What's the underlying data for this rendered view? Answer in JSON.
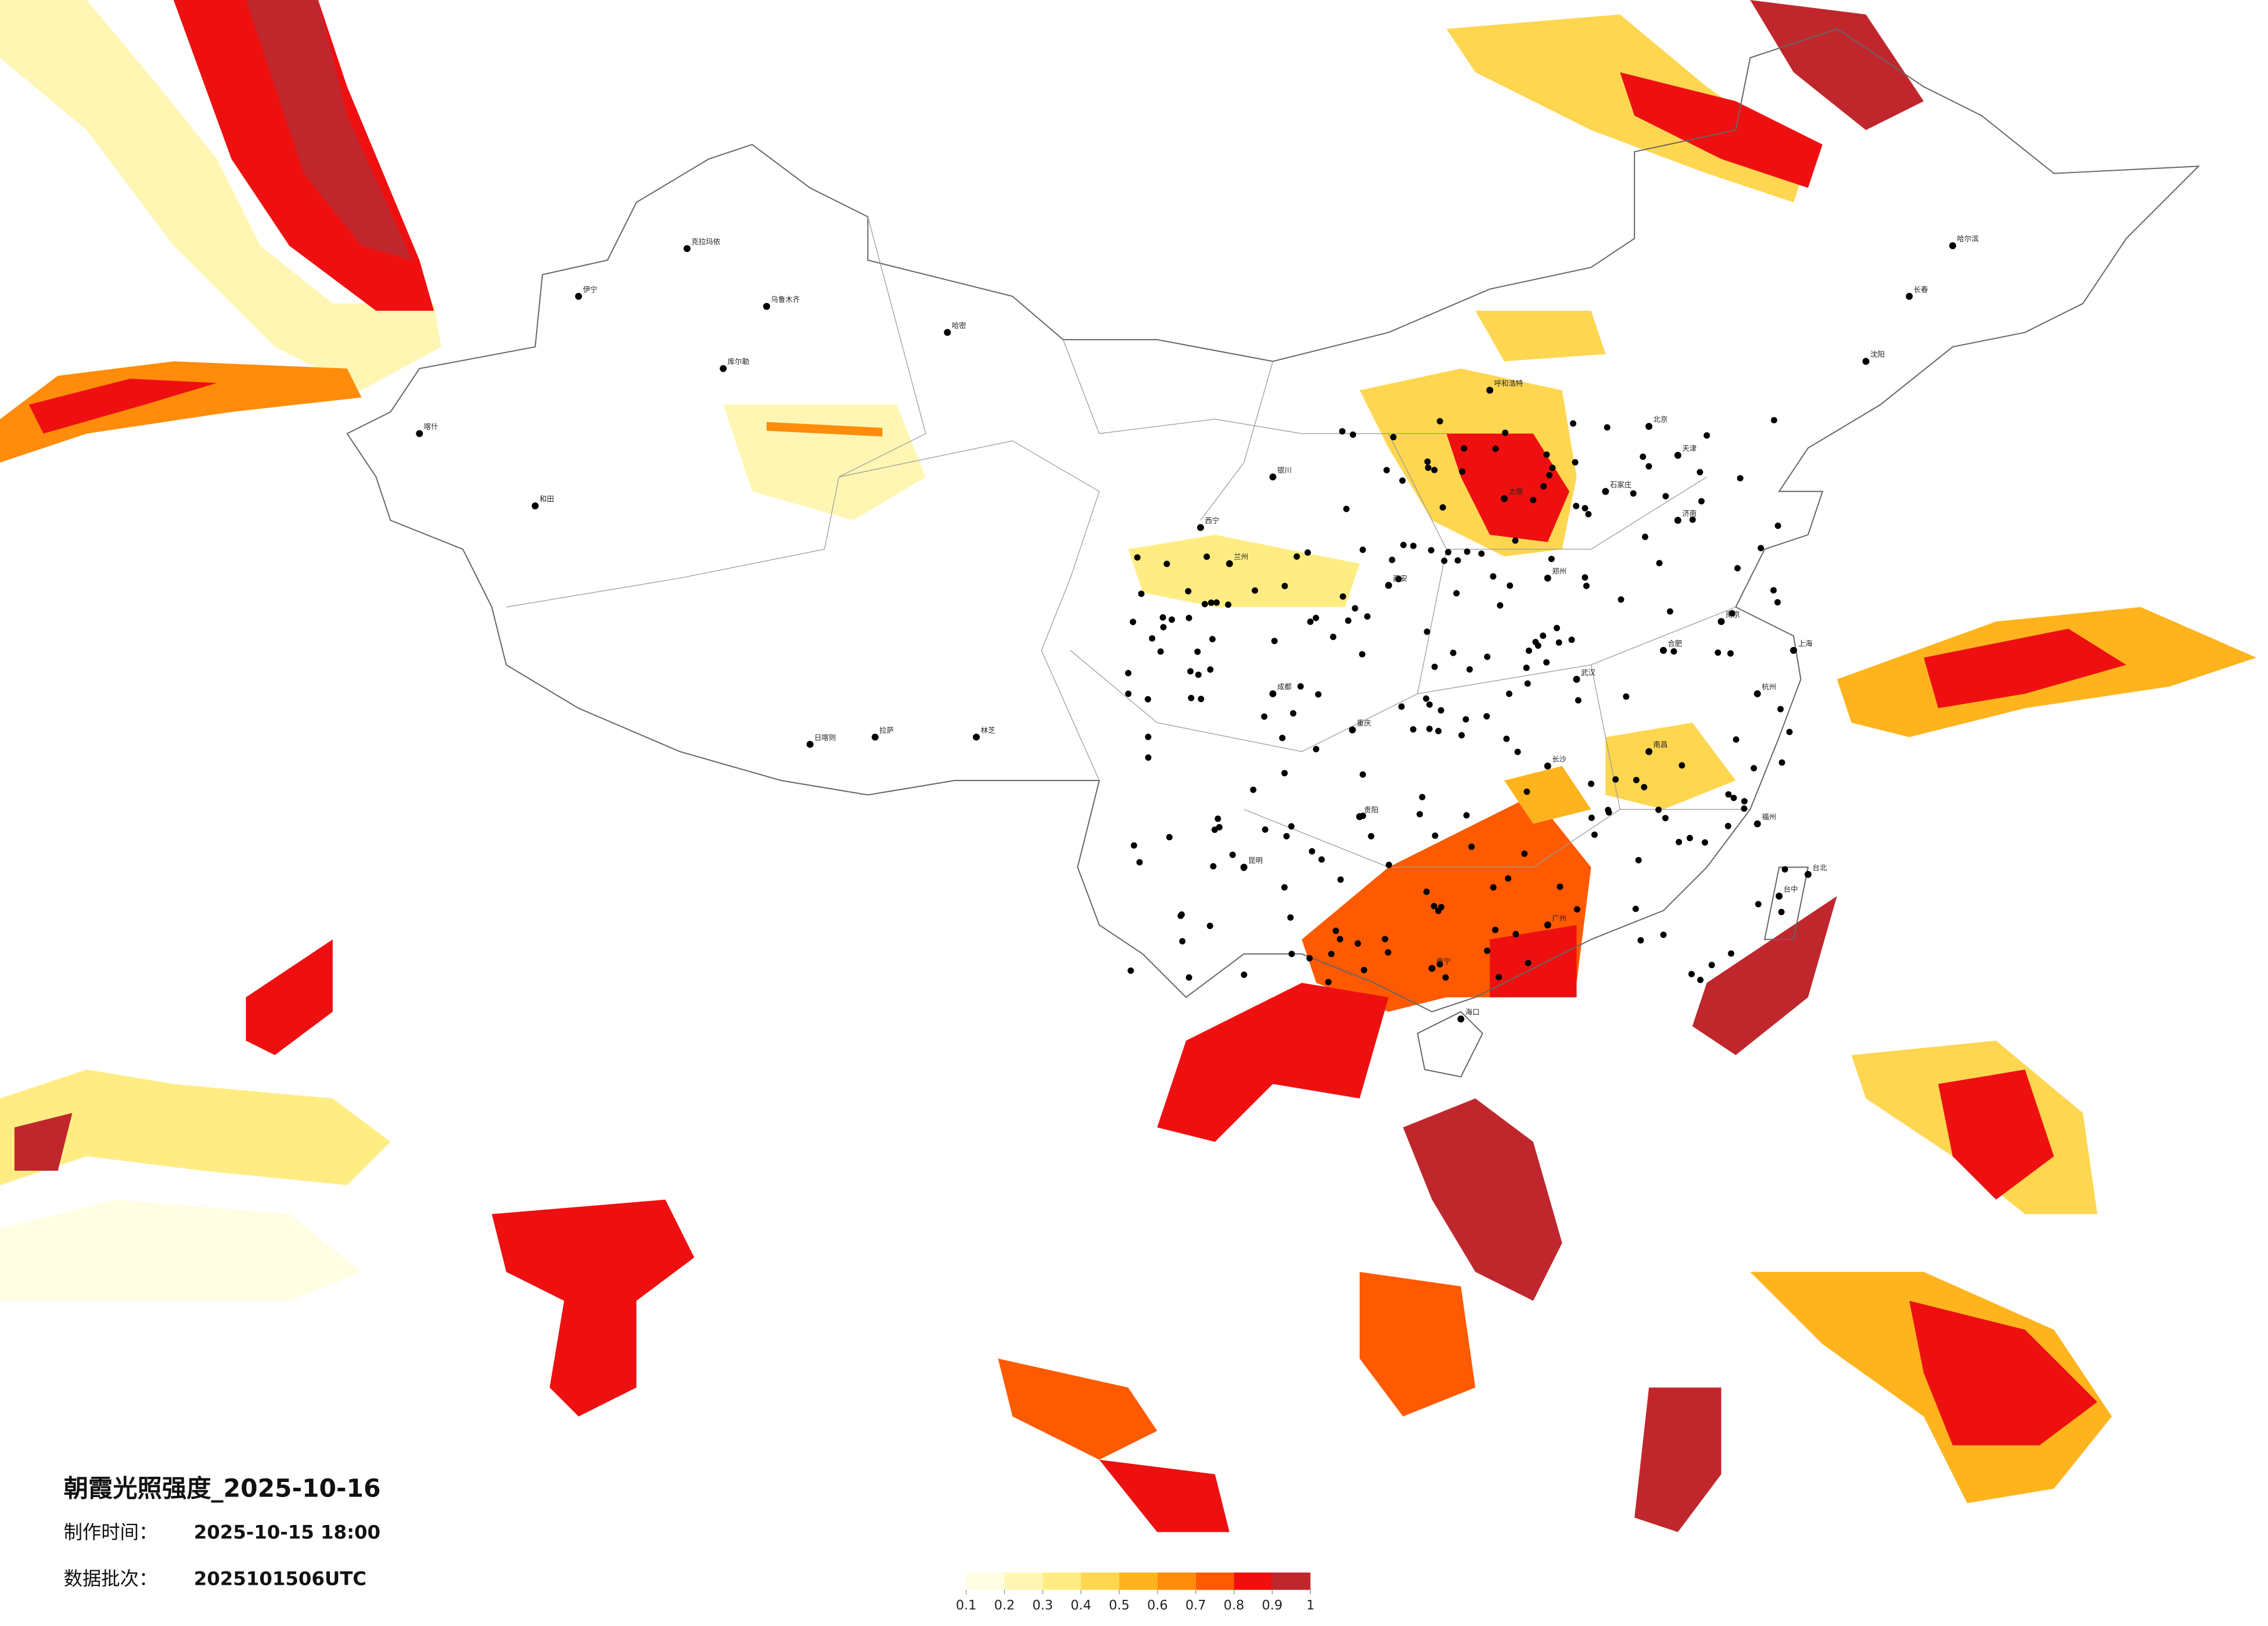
{
  "title": "朝霞光照强度_2025-10-16",
  "info": [
    {
      "label": "制作时间：",
      "value": "2025-10-15 18:00"
    },
    {
      "label": "数据批次：",
      "value": "2025101506UTC"
    }
  ],
  "colorbar": {
    "ticks": [
      0.1,
      0.2,
      0.3,
      0.4,
      0.5,
      0.6,
      0.7,
      0.8,
      0.9,
      1
    ],
    "colors": [
      "#fffde2",
      "#fff6b4",
      "#ffed84",
      "#ffd650",
      "#ffb41e",
      "#ff8c0a",
      "#ff5a00",
      "#ee1010",
      "#c0272d"
    ]
  },
  "cities": [
    "克拉玛依",
    "乌鲁木齐",
    "伊宁",
    "喀什",
    "和田",
    "库尔勒",
    "哈密",
    "拉萨",
    "日喀则",
    "林芝",
    "西宁",
    "兰州",
    "银川",
    "呼和浩特",
    "北京",
    "天津",
    "石家庄",
    "太原",
    "济南",
    "郑州",
    "西安",
    "成都",
    "重庆",
    "武汉",
    "长沙",
    "南昌",
    "合肥",
    "南京",
    "上海",
    "杭州",
    "福州",
    "广州",
    "南宁",
    "昆明",
    "贵阳",
    "海口",
    "哈尔滨",
    "长春",
    "沈阳",
    "台北",
    "台中"
  ]
}
